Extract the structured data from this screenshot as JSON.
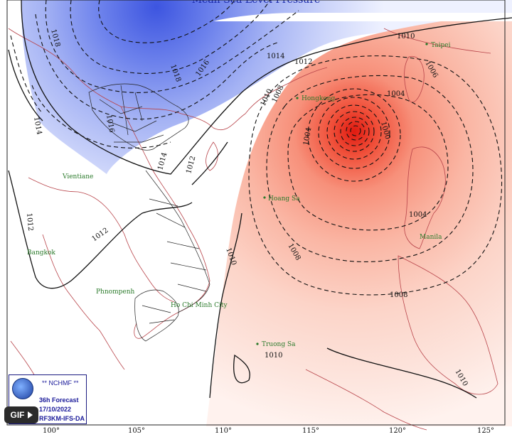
{
  "title": "Mean Sea Level Pressure",
  "contours": {
    "left_group": [
      "1018",
      "1018",
      "1016",
      "1014",
      "1014",
      "1014",
      "1012",
      "1012",
      "1012",
      "1016"
    ],
    "right_group": [
      "1010",
      "1012",
      "1010",
      "1008",
      "1004",
      "1006",
      "1004",
      "1000",
      "1004",
      "1008",
      "1010",
      "1010",
      "1008"
    ]
  },
  "lon_ticks": [
    "100°",
    "105°",
    "110°",
    "115°",
    "120°",
    "125°"
  ],
  "cities": [
    "Taipei",
    "Hongkong",
    "Vientiane",
    "Hoang Sa",
    "Bangkok",
    "Manila",
    "Phnompenh",
    "Ho Chi Minh City",
    "Truong Sa"
  ],
  "logo": {
    "org": "** NCHMF **",
    "line1": "36h Forecast",
    "line2": "17/10/2022",
    "line3": "RF3KM-IFS-DA"
  },
  "gif_label": "GIF",
  "colors": {
    "low_pressure_core": "#e52a1a",
    "low_pressure_outer": "#fde4dc",
    "high_pressure_core": "#4f68e6",
    "high_pressure_outer": "#e3e8ff",
    "coastline": "#b8444a",
    "city_label": "#2a7a2a"
  }
}
